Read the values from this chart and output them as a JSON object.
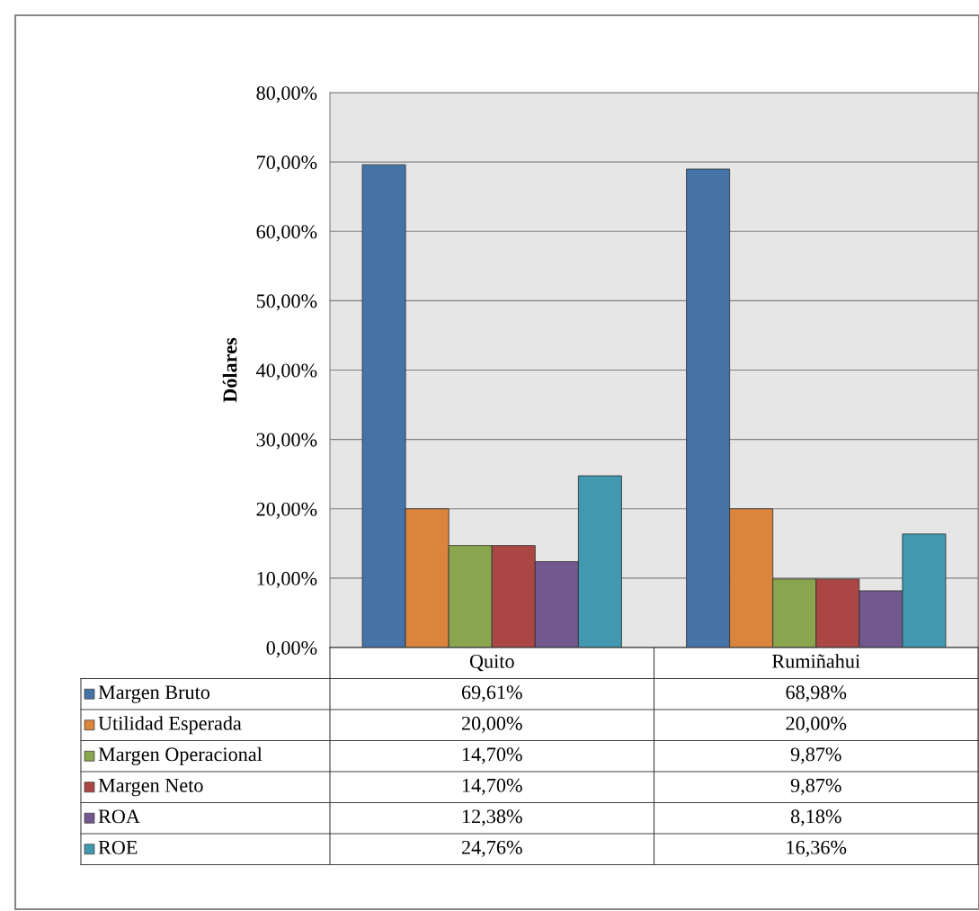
{
  "chart_data": {
    "type": "bar",
    "ylabel": "Dólares",
    "categories": [
      "Quito",
      "Rumiñahui"
    ],
    "series": [
      {
        "name": "Margen Bruto",
        "color": "#4572a7",
        "values": [
          69.61,
          68.98
        ],
        "value_labels": [
          "69,61%",
          "68,98%"
        ]
      },
      {
        "name": "Utilidad Esperada",
        "color": "#db843d",
        "values": [
          20.0,
          20.0
        ],
        "value_labels": [
          "20,00%",
          "20,00%"
        ]
      },
      {
        "name": "Margen Operacional",
        "color": "#89a54e",
        "values": [
          14.7,
          9.87
        ],
        "value_labels": [
          "14,70%",
          "9,87%"
        ]
      },
      {
        "name": "Margen Neto",
        "color": "#aa4643",
        "values": [
          14.7,
          9.87
        ],
        "value_labels": [
          "14,70%",
          "9,87%"
        ]
      },
      {
        "name": "ROA",
        "color": "#71588f",
        "values": [
          12.38,
          8.18
        ],
        "value_labels": [
          "12,38%",
          "8,18%"
        ]
      },
      {
        "name": "ROE",
        "color": "#4198af",
        "values": [
          24.76,
          16.36
        ],
        "value_labels": [
          "24,76%",
          "16,36%"
        ]
      }
    ],
    "ylim": [
      0,
      80
    ],
    "yticks": [
      {
        "value": 0,
        "label": "0,00%"
      },
      {
        "value": 10,
        "label": "10,00%"
      },
      {
        "value": 20,
        "label": "20,00%"
      },
      {
        "value": 30,
        "label": "30,00%"
      },
      {
        "value": 40,
        "label": "40,00%"
      },
      {
        "value": 50,
        "label": "50,00%"
      },
      {
        "value": 60,
        "label": "60,00%"
      },
      {
        "value": 70,
        "label": "70,00%"
      },
      {
        "value": 80,
        "label": "80,00%"
      }
    ],
    "grid": "y",
    "legend": "bottom"
  }
}
